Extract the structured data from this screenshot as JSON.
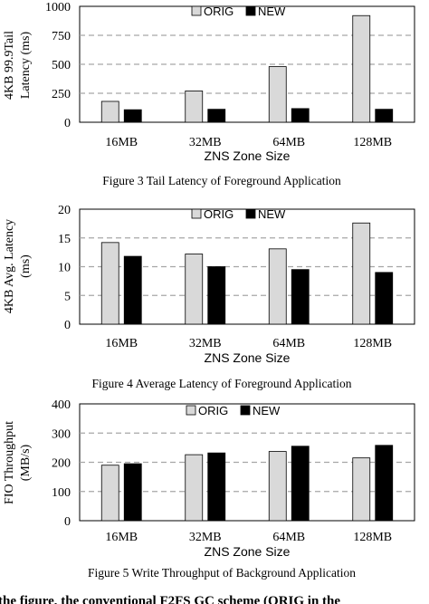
{
  "colors": {
    "orig": "#d9d9d9",
    "new": "#000000",
    "grid": "#a6a6a6",
    "axis": "#000000"
  },
  "chart_data": [
    {
      "type": "bar",
      "categories": [
        "16MB",
        "32MB",
        "64MB",
        "128MB"
      ],
      "series": [
        {
          "name": "ORIG",
          "values": [
            180,
            270,
            480,
            920
          ]
        },
        {
          "name": "NEW",
          "values": [
            108,
            112,
            118,
            112
          ]
        }
      ],
      "ylim": [
        0,
        1000
      ],
      "yticks": [
        0,
        250,
        500,
        750,
        1000
      ],
      "ylabel": [
        "4KB 99.9Tail",
        "Latency (ms)"
      ],
      "xlabel": "ZNS Zone Size",
      "caption": "Figure 3 Tail Latency of Foreground Application",
      "legend": "top-right",
      "grid": true
    },
    {
      "type": "bar",
      "categories": [
        "16MB",
        "32MB",
        "64MB",
        "128MB"
      ],
      "series": [
        {
          "name": "ORIG",
          "values": [
            14.2,
            12.2,
            13.1,
            17.6
          ]
        },
        {
          "name": "NEW",
          "values": [
            11.8,
            10.0,
            9.5,
            9.0
          ]
        }
      ],
      "ylim": [
        0,
        20
      ],
      "yticks": [
        0,
        5,
        10,
        15,
        20
      ],
      "ylabel": [
        "4KB Avg. Latency",
        "(ms)"
      ],
      "xlabel": "ZNS Zone Size",
      "caption": "Figure 4 Average Latency of Foreground Application",
      "legend": "top-right",
      "grid": true
    },
    {
      "type": "bar",
      "categories": [
        "16MB",
        "32MB",
        "64MB",
        "128MB"
      ],
      "series": [
        {
          "name": "ORIG",
          "values": [
            190,
            226,
            237,
            215
          ]
        },
        {
          "name": "NEW",
          "values": [
            195,
            232,
            255,
            258
          ]
        }
      ],
      "ylim": [
        0,
        400
      ],
      "yticks": [
        0,
        100,
        200,
        300,
        400
      ],
      "ylabel": [
        "FIO Throughput",
        "(MB/s)"
      ],
      "xlabel": "ZNS Zone Size",
      "caption": "Figure 5 Write Throughput of Background Application",
      "legend": "top-right",
      "grid": true
    }
  ],
  "body_text_fragment": "the figure, the conventional F2FS GC scheme (ORIG in the"
}
